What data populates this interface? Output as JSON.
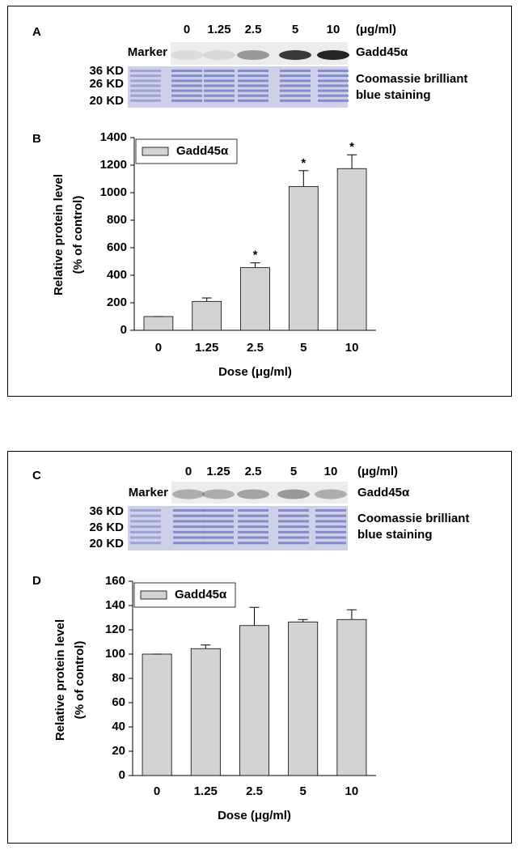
{
  "blots": [
    {
      "letter": "A",
      "lanes": [
        "0",
        "1.25",
        "2.5",
        "5",
        "10"
      ],
      "unit": "(μg/ml)",
      "marker": "Marker",
      "band": "Gadd45α",
      "sizes": [
        "36 KD",
        "26 KD",
        "20 KD"
      ],
      "stain": [
        "Coomassie brilliant",
        "blue staining"
      ]
    },
    {
      "letter": "C",
      "lanes": [
        "0",
        "1.25",
        "2.5",
        "5",
        "10"
      ],
      "unit": "(μg/ml)",
      "marker": "Marker",
      "band": "Gadd45α",
      "sizes": [
        "36 KD",
        "26 KD",
        "20 KD"
      ],
      "stain": [
        "Coomassie brilliant",
        "blue staining"
      ]
    }
  ],
  "chart_data": [
    {
      "type": "bar",
      "panel_label": "B",
      "xlabel": "Dose (μg/ml)",
      "ylabel": [
        "Relative protein level",
        "(% of control)"
      ],
      "categories": [
        "0",
        "1.25",
        "2.5",
        "5",
        "10"
      ],
      "series": [
        {
          "name": "Gadd45α",
          "color": "#d3d3d3",
          "values": [
            100,
            210,
            455,
            1045,
            1175
          ],
          "errors": [
            0,
            25,
            35,
            115,
            100
          ],
          "annotations": [
            null,
            null,
            "*",
            "*",
            "*"
          ]
        }
      ],
      "ylim": [
        0,
        1400
      ],
      "yticks": [
        0,
        200,
        400,
        600,
        800,
        1000,
        1200,
        1400
      ],
      "legend": "upper left"
    },
    {
      "type": "bar",
      "panel_label": "D",
      "xlabel": "Dose (μg/ml)",
      "ylabel": [
        "Relative protein level",
        "(% of control)"
      ],
      "categories": [
        "0",
        "1.25",
        "2.5",
        "5",
        "10"
      ],
      "series": [
        {
          "name": "Gadd45α",
          "color": "#d3d3d3",
          "values": [
            100,
            104.5,
            123.5,
            126.5,
            128.5
          ],
          "errors": [
            0,
            3,
            15,
            2,
            8
          ]
        }
      ],
      "ylim": [
        0,
        160
      ],
      "yticks": [
        0,
        20,
        40,
        60,
        80,
        100,
        120,
        140,
        160
      ],
      "legend": "upper left"
    }
  ]
}
